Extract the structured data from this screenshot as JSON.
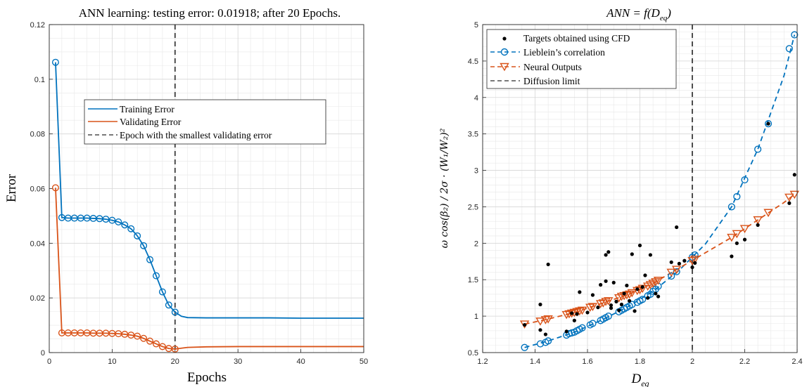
{
  "colors": {
    "blue": "#0072BD",
    "red": "#D95319",
    "black": "#000000",
    "dashed": "#4d4d4d"
  },
  "chart_data": [
    {
      "type": "line",
      "title": "ANN learning: testing error: 0.01918; after 20 Epochs.",
      "xlabel": "Epochs",
      "ylabel": "Error",
      "xlim": [
        0,
        50
      ],
      "ylim": [
        0,
        0.12
      ],
      "xticks": [
        "0",
        "10",
        "20",
        "30",
        "40",
        "50"
      ],
      "yticks": [
        "0",
        "0.02",
        "0.04",
        "0.06",
        "0.08",
        "0.1",
        "0.12"
      ],
      "grid": true,
      "legend_position": "center",
      "legend": [
        "Training Error",
        "Validating Error",
        "Epoch with the smallest validating error"
      ],
      "vline_x": 20,
      "series": [
        {
          "name": "Training Error",
          "x": [
            1,
            2,
            3,
            4,
            5,
            6,
            7,
            8,
            9,
            10,
            11,
            12,
            13,
            14,
            15,
            16,
            17,
            18,
            19,
            20,
            21,
            22,
            25,
            30,
            35,
            40,
            45,
            50
          ],
          "y": [
            0.1062,
            0.0494,
            0.0492,
            0.0492,
            0.0492,
            0.0492,
            0.0491,
            0.049,
            0.0488,
            0.0484,
            0.0478,
            0.0467,
            0.0453,
            0.0427,
            0.0391,
            0.034,
            0.0281,
            0.0222,
            0.0174,
            0.0148,
            0.0133,
            0.0128,
            0.0127,
            0.0127,
            0.0127,
            0.0126,
            0.0126,
            0.0126
          ],
          "markers_upto": 20
        },
        {
          "name": "Validating Error",
          "x": [
            1,
            2,
            3,
            4,
            5,
            6,
            7,
            8,
            9,
            10,
            11,
            12,
            13,
            14,
            15,
            16,
            17,
            18,
            19,
            20,
            21,
            22,
            25,
            30,
            35,
            40,
            45,
            50
          ],
          "y": [
            0.0603,
            0.0072,
            0.0072,
            0.0072,
            0.0072,
            0.0072,
            0.0071,
            0.0071,
            0.0071,
            0.007,
            0.0069,
            0.0067,
            0.0064,
            0.006,
            0.0052,
            0.0042,
            0.0032,
            0.0022,
            0.0015,
            0.0013,
            0.0016,
            0.0019,
            0.0021,
            0.0022,
            0.0022,
            0.0022,
            0.0022,
            0.0022
          ],
          "markers_upto": 20
        }
      ]
    },
    {
      "type": "scatter",
      "title": "ANN = f(D_eq)",
      "title_main": "ANN = f(D",
      "title_sub": "eq",
      "title_end": ")",
      "xlabel_main": "D",
      "xlabel_sub": "eq",
      "ylabel": "ω cos(β₂) / 2σ · (W₁/W₂)²",
      "xlim": [
        1.2,
        2.4
      ],
      "ylim": [
        0.5,
        5
      ],
      "xticks": [
        "1.2",
        "1.4",
        "1.6",
        "1.8",
        "2",
        "2.2",
        "2.4"
      ],
      "yticks": [
        "0.5",
        "1",
        "1.5",
        "2",
        "2.5",
        "3",
        "3.5",
        "4",
        "4.5",
        "5"
      ],
      "grid": true,
      "legend_position": "top-left",
      "legend": [
        "Targets obtained using CFD",
        "Lieblein’s correlation",
        "Neural Outputs",
        "Diffusion limit"
      ],
      "vline_x": 2,
      "series": [
        {
          "name": "Targets obtained using CFD",
          "x": [
            1.36,
            1.42,
            1.42,
            1.45,
            1.44,
            1.52,
            1.54,
            1.55,
            1.56,
            1.57,
            1.6,
            1.62,
            1.64,
            1.65,
            1.67,
            1.67,
            1.68,
            1.69,
            1.69,
            1.7,
            1.71,
            1.72,
            1.73,
            1.74,
            1.75,
            1.76,
            1.77,
            1.78,
            1.79,
            1.8,
            1.81,
            1.82,
            1.83,
            1.84,
            1.86,
            1.87,
            1.92,
            1.94,
            1.95,
            1.97,
            2.0,
            2.01,
            2.15,
            2.17,
            2.2,
            2.25,
            2.29,
            2.37,
            2.39
          ],
          "y": [
            0.88,
            1.16,
            0.81,
            1.71,
            0.75,
            0.79,
            1.04,
            0.94,
            1.03,
            1.33,
            1.05,
            1.29,
            1.12,
            1.43,
            1.84,
            1.48,
            1.88,
            1.11,
            1.15,
            1.46,
            1.2,
            1.08,
            1.16,
            1.31,
            1.42,
            1.21,
            1.85,
            1.07,
            1.37,
            1.97,
            1.4,
            1.56,
            1.25,
            1.84,
            1.31,
            1.27,
            1.74,
            2.22,
            1.72,
            1.76,
            1.67,
            1.73,
            1.82,
            2.0,
            2.05,
            2.25,
            3.64,
            2.55,
            2.94
          ]
        },
        {
          "name": "Lieblein’s correlation",
          "x": [
            1.36,
            1.42,
            1.44,
            1.45,
            1.52,
            1.53,
            1.54,
            1.55,
            1.56,
            1.57,
            1.58,
            1.61,
            1.62,
            1.65,
            1.66,
            1.67,
            1.68,
            1.72,
            1.73,
            1.74,
            1.75,
            1.76,
            1.77,
            1.79,
            1.8,
            1.81,
            1.83,
            1.84,
            1.85,
            1.86,
            1.87,
            1.92,
            1.94,
            2.0,
            2.01,
            2.15,
            2.17,
            2.2,
            2.25,
            2.29,
            2.37,
            2.39
          ],
          "y": [
            0.57,
            0.62,
            0.64,
            0.66,
            0.74,
            0.76,
            0.77,
            0.78,
            0.8,
            0.82,
            0.84,
            0.88,
            0.9,
            0.94,
            0.96,
            0.98,
            1.0,
            1.06,
            1.08,
            1.1,
            1.12,
            1.14,
            1.16,
            1.19,
            1.21,
            1.23,
            1.28,
            1.3,
            1.34,
            1.37,
            1.41,
            1.55,
            1.61,
            1.81,
            1.84,
            2.5,
            2.64,
            2.87,
            3.29,
            3.64,
            4.67,
            4.86
          ]
        },
        {
          "name": "Neural Outputs",
          "x": [
            1.36,
            1.42,
            1.44,
            1.45,
            1.52,
            1.53,
            1.54,
            1.55,
            1.56,
            1.57,
            1.58,
            1.61,
            1.62,
            1.65,
            1.66,
            1.67,
            1.68,
            1.72,
            1.73,
            1.74,
            1.75,
            1.76,
            1.77,
            1.79,
            1.8,
            1.81,
            1.83,
            1.84,
            1.85,
            1.86,
            1.87,
            1.92,
            1.94,
            2.0,
            2.01,
            2.15,
            2.17,
            2.2,
            2.25,
            2.29,
            2.37,
            2.39
          ],
          "y": [
            0.89,
            0.93,
            0.95,
            0.96,
            1.02,
            1.03,
            1.04,
            1.05,
            1.06,
            1.07,
            1.08,
            1.12,
            1.13,
            1.17,
            1.18,
            1.2,
            1.21,
            1.25,
            1.27,
            1.28,
            1.29,
            1.3,
            1.32,
            1.35,
            1.36,
            1.38,
            1.41,
            1.43,
            1.45,
            1.47,
            1.49,
            1.6,
            1.64,
            1.76,
            1.78,
            2.08,
            2.13,
            2.2,
            2.32,
            2.42,
            2.63,
            2.67
          ]
        }
      ],
      "fit_series": [
        {
          "name": "Lieblein’s correlation fit",
          "x": [
            1.36,
            1.45,
            1.55,
            1.65,
            1.75,
            1.85,
            1.95,
            2.05,
            2.15,
            2.25,
            2.35,
            2.39
          ],
          "y": [
            0.57,
            0.66,
            0.78,
            0.94,
            1.12,
            1.34,
            1.63,
            1.99,
            2.5,
            3.29,
            4.3,
            4.86
          ]
        },
        {
          "name": "Neural Outputs fit",
          "x": [
            1.36,
            1.45,
            1.55,
            1.65,
            1.75,
            1.85,
            1.95,
            2.05,
            2.15,
            2.25,
            2.35,
            2.39
          ],
          "y": [
            0.89,
            0.96,
            1.05,
            1.17,
            1.29,
            1.45,
            1.66,
            1.87,
            2.08,
            2.32,
            2.56,
            2.67
          ]
        }
      ]
    }
  ]
}
